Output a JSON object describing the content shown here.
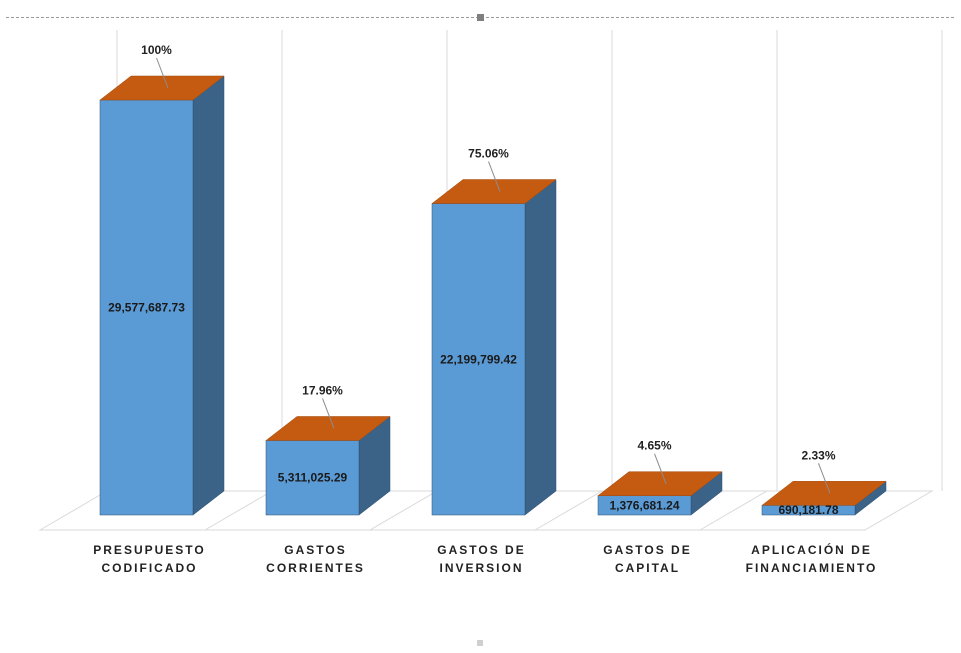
{
  "chart_data": {
    "type": "bar",
    "style": "3d-column",
    "categories": [
      [
        "PRESUPUESTO",
        "CODIFICADO"
      ],
      [
        "GASTOS",
        "CORRIENTES"
      ],
      [
        "GASTOS DE",
        "INVERSION"
      ],
      [
        "GASTOS DE",
        "CAPITAL"
      ],
      [
        "APLICACIÓN DE",
        "FINANCIAMIENTO"
      ]
    ],
    "values": [
      29577687.73,
      5311025.29,
      22199799.42,
      1376681.24,
      690181.78
    ],
    "value_labels": [
      "29,577,687.73",
      "5,311,025.29",
      "22,199,799.42",
      "1,376,681.24",
      "690,181.78"
    ],
    "percent_labels": [
      "100%",
      "17.96%",
      "75.06%",
      "4.65%",
      "2.33%"
    ],
    "ylim": [
      0,
      29577687.73
    ],
    "grid": true,
    "legend": "none",
    "colors": {
      "front": "#5b9bd5",
      "side": "#3b6387",
      "top": "#c55a11",
      "edge": "#2e4f73",
      "grid": "#d9d9d9",
      "leader": "#8c8c8c"
    }
  }
}
